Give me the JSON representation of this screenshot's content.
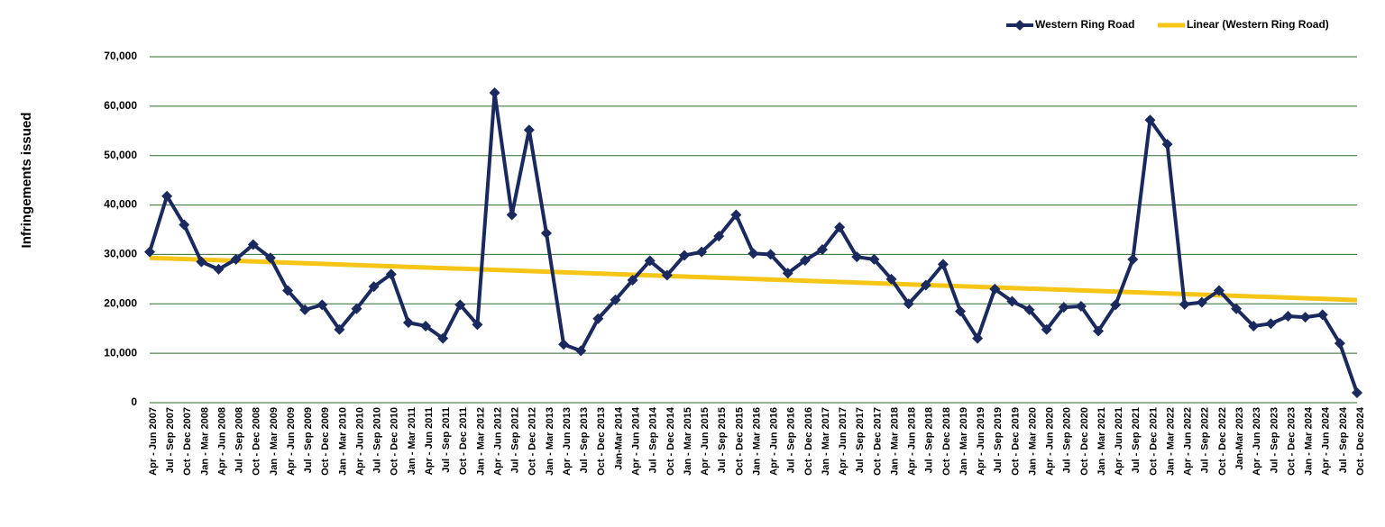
{
  "chart_data": {
    "type": "line",
    "y_label": "Infringements issued",
    "categories": [
      "Apr - Jun 2007",
      "Jul - Sep 2007",
      "Oct - Dec 2007",
      "Jan - Mar 2008",
      "Apr - Jun 2008",
      "Jul - Sep 2008",
      "Oct - Dec 2008",
      "Jan - Mar 2009",
      "Apr - Jun 2009",
      "Jul - Sep 2009",
      "Oct - Dec 2009",
      "Jan - Mar 2010",
      "Apr - Jun 2010",
      "Jul - Sep 2010",
      "Oct - Dec 2010",
      "Jan - Mar 2011",
      "Apr - Jun 2011",
      "Jul - Sep 2011",
      "Oct - Dec 2011",
      "Jan - Mar 2012",
      "Apr - Jun 2012",
      "Jul - Sep 2012",
      "Oct - Dec 2012",
      "Jan - Mar 2013",
      "Apr - Jun 2013",
      "Jul - Sep 2013",
      "Oct - Dec 2013",
      "Jan-Mar 2014",
      "Apr - Jun 2014",
      "Jul - Sep 2014",
      "Oct - Dec 2014",
      "Jan - Mar 2015",
      "Apr - Jun 2015",
      "Jul - Sep 2015",
      "Oct - Dec 2015",
      "Jan - Mar 2016",
      "Apr - Jun 2016",
      "Jul - Sep 2016",
      "Oct - Dec 2016",
      "Jan - Mar 2017",
      "Apr - Jun 2017",
      "Jul - Sep 2017",
      "Oct - Dec 2017",
      "Jan - Mar 2018",
      "Apr - Jun 2018",
      "Jul - Sep 2018",
      "Oct - Dec 2018",
      "Jan - Mar 2019",
      "Apr - Jun 2019",
      "Jul - Sep 2019",
      "Oct - Dec 2019",
      "Jan - Mar 2020",
      "Apr - Jun 2020",
      "Jul - Sep 2020",
      "Oct - Dec 2020",
      "Jan - Mar 2021",
      "Apr - Jun 2021",
      "Jul - Sep 2021",
      "Oct - Dec 2021",
      "Jan - Mar 2022",
      "Apr - Jun 2022",
      "Jul - Sep 2022",
      "Oct - Dec 2022",
      "Jan-Mar 2023",
      "Apr - Jun 2023",
      "Jul - Sep 2023",
      "Oct - Dec 2023",
      "Jan - Mar 2024",
      "Apr - Jun 2024",
      "Jul - Sep 2024",
      "Oct - Dec 2024"
    ],
    "series": [
      {
        "name": "Western Ring Road",
        "color": "#1b2a5e",
        "values": [
          30500,
          41800,
          36000,
          28500,
          27000,
          29000,
          32000,
          29300,
          22700,
          18800,
          19800,
          14800,
          19000,
          23500,
          26000,
          16200,
          15500,
          13000,
          19800,
          15800,
          62700,
          38000,
          55200,
          34300,
          11800,
          10500,
          17000,
          20800,
          24800,
          28700,
          25800,
          29800,
          30500,
          33700,
          38000,
          30200,
          30000,
          26200,
          28800,
          31000,
          35500,
          29500,
          29000,
          25000,
          20000,
          23800,
          28000,
          18500,
          13000,
          23000,
          20500,
          18800,
          14800,
          19300,
          19500,
          14500,
          19800,
          29000,
          57200,
          52300,
          19900,
          20300,
          22700,
          19000,
          15500,
          16000,
          17500,
          17300,
          17800,
          12000,
          2000
        ]
      }
    ],
    "trendline": {
      "name": "Linear (Western Ring Road)",
      "color": "#f5c518"
    },
    "ylim": [
      0,
      70000
    ],
    "yticks": [
      0,
      {
        "value": 10000,
        "label": "10,000"
      },
      {
        "value": 20000,
        "label": "20,000"
      },
      {
        "value": 30000,
        "label": "30,000"
      },
      {
        "value": 40000,
        "label": "40,000"
      },
      {
        "value": 50000,
        "label": "50,000"
      },
      {
        "value": 60000,
        "label": "60,000"
      },
      {
        "value": 70000,
        "label": "70,000"
      }
    ],
    "grid": true,
    "grid_color": "#2e6b2e",
    "legend": "top-right"
  }
}
